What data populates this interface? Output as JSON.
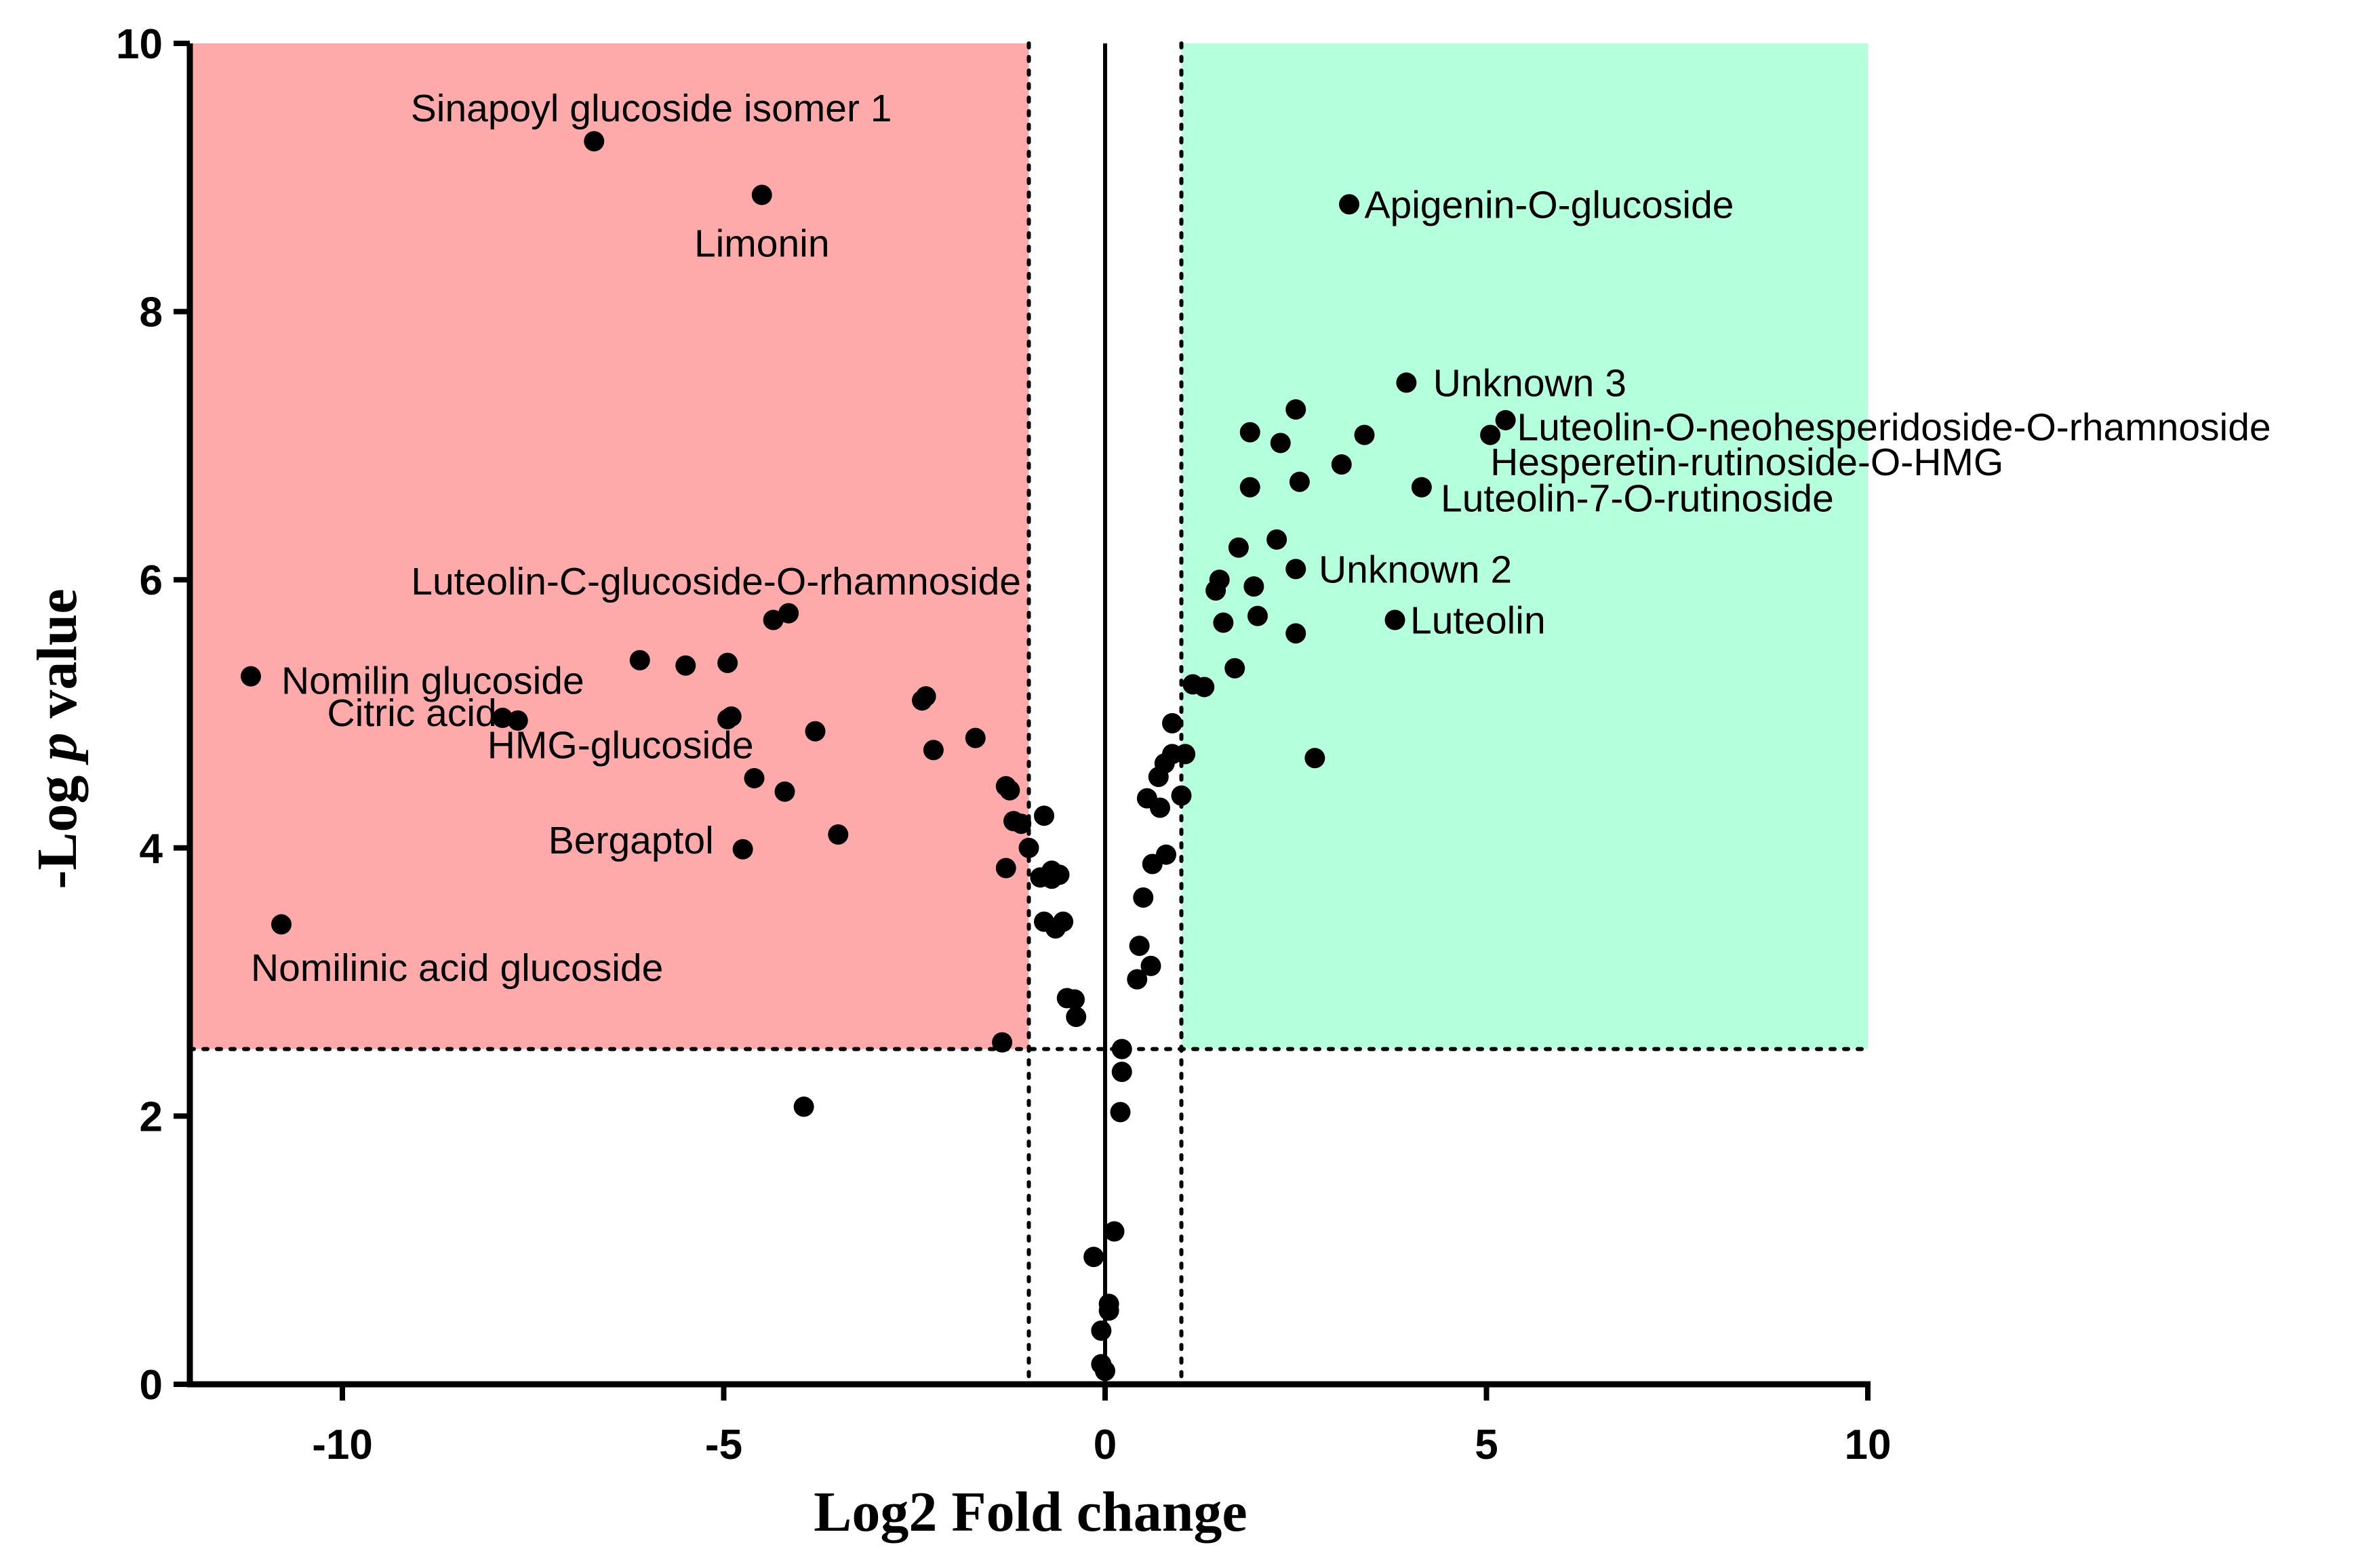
{
  "chart_data": {
    "type": "scatter",
    "title": "",
    "xlabel": "Log2 Fold change",
    "ylabel_prefix": "-Log ",
    "ylabel_italic": "p",
    "ylabel_suffix": " value",
    "xlim": [
      -12,
      10
    ],
    "ylim": [
      0,
      10
    ],
    "xticks": [
      -10,
      -5,
      0,
      5,
      10
    ],
    "yticks": [
      0,
      2,
      4,
      6,
      8,
      10
    ],
    "colors": {
      "down_region": "#ffaaaa",
      "up_region": "#b4ffdc",
      "points": "#000000",
      "axes": "#000000"
    },
    "regions": [
      {
        "name": "down-regulated",
        "x_range": [
          -12,
          -1
        ],
        "y_range": [
          2.5,
          10
        ],
        "color": "#ffaaaa"
      },
      {
        "name": "up-regulated",
        "x_range": [
          1,
          10
        ],
        "y_range": [
          2.5,
          10
        ],
        "color": "#b4ffdc"
      }
    ],
    "thresholds": {
      "fold_change_lines": [
        -1,
        1
      ],
      "p_value_line": 2.5
    },
    "points": [
      [
        -6.7,
        9.27
      ],
      [
        -4.5,
        8.87
      ],
      [
        -11.2,
        5.28
      ],
      [
        -10.8,
        3.43
      ],
      [
        -7.9,
        4.97
      ],
      [
        -7.7,
        4.95
      ],
      [
        -4.95,
        4.96
      ],
      [
        -4.9,
        4.98
      ],
      [
        -4.75,
        3.99
      ],
      [
        -4.6,
        4.52
      ],
      [
        -4.2,
        4.42
      ],
      [
        -4.35,
        5.7
      ],
      [
        -4.15,
        5.75
      ],
      [
        -6.1,
        5.4
      ],
      [
        -5.5,
        5.36
      ],
      [
        -4.95,
        5.38
      ],
      [
        -3.8,
        4.87
      ],
      [
        -3.5,
        4.1
      ],
      [
        -2.4,
        5.1
      ],
      [
        -2.35,
        5.13
      ],
      [
        -2.25,
        4.73
      ],
      [
        -1.7,
        4.82
      ],
      [
        -1.35,
        2.55
      ],
      [
        -1.3,
        4.46
      ],
      [
        -1.25,
        4.43
      ],
      [
        -1.2,
        4.2
      ],
      [
        -1.1,
        4.18
      ],
      [
        -1.3,
        3.85
      ],
      [
        -1.0,
        4.0
      ],
      [
        -0.85,
        3.78
      ],
      [
        -0.8,
        3.45
      ],
      [
        -0.8,
        4.24
      ],
      [
        -0.7,
        3.77
      ],
      [
        -0.7,
        3.83
      ],
      [
        -0.65,
        3.4
      ],
      [
        -0.55,
        3.45
      ],
      [
        -0.5,
        2.88
      ],
      [
        -0.4,
        2.87
      ],
      [
        -0.38,
        2.74
      ],
      [
        -0.6,
        3.8
      ],
      [
        -3.95,
        2.07
      ],
      [
        -0.15,
        0.95
      ],
      [
        -0.05,
        0.4
      ],
      [
        -0.05,
        0.15
      ],
      [
        0.0,
        0.1
      ],
      [
        0.05,
        0.55
      ],
      [
        0.05,
        0.6
      ],
      [
        0.12,
        1.14
      ],
      [
        0.2,
        2.03
      ],
      [
        0.22,
        2.33
      ],
      [
        0.22,
        2.5
      ],
      [
        0.42,
        3.02
      ],
      [
        0.45,
        3.27
      ],
      [
        0.5,
        3.63
      ],
      [
        0.55,
        4.37
      ],
      [
        0.6,
        3.12
      ],
      [
        0.62,
        3.88
      ],
      [
        0.7,
        4.53
      ],
      [
        0.72,
        4.3
      ],
      [
        0.78,
        4.63
      ],
      [
        0.8,
        3.95
      ],
      [
        0.88,
        4.7
      ],
      [
        0.88,
        4.93
      ],
      [
        1.0,
        4.39
      ],
      [
        1.05,
        4.7
      ],
      [
        1.15,
        5.22
      ],
      [
        1.3,
        5.2
      ],
      [
        1.45,
        5.92
      ],
      [
        1.5,
        6.0
      ],
      [
        1.55,
        5.68
      ],
      [
        1.7,
        5.34
      ],
      [
        1.75,
        6.24
      ],
      [
        1.9,
        6.69
      ],
      [
        1.9,
        7.1
      ],
      [
        1.95,
        5.95
      ],
      [
        2.0,
        5.73
      ],
      [
        2.25,
        6.3
      ],
      [
        2.3,
        7.02
      ],
      [
        2.5,
        7.27
      ],
      [
        2.5,
        6.08
      ],
      [
        2.5,
        5.6
      ],
      [
        2.55,
        6.73
      ],
      [
        2.75,
        4.67
      ],
      [
        3.1,
        6.86
      ],
      [
        3.2,
        8.8
      ],
      [
        3.4,
        7.08
      ],
      [
        3.8,
        5.7
      ],
      [
        3.95,
        7.47
      ],
      [
        4.15,
        6.69
      ],
      [
        5.05,
        7.08
      ],
      [
        5.25,
        7.19
      ]
    ],
    "annotations": [
      {
        "text": "Sinapoyl glucoside isomer 1",
        "x": -5.95,
        "y": 9.52,
        "anchor": "middle"
      },
      {
        "text": "Limonin",
        "x": -4.5,
        "y": 8.51,
        "anchor": "middle"
      },
      {
        "text": "Apigenin-O-glucoside",
        "x": 3.4,
        "y": 8.8,
        "anchor": "start"
      },
      {
        "text": "Unknown 3",
        "x": 4.3,
        "y": 7.47,
        "anchor": "start"
      },
      {
        "text": "Luteolin-O-neohesperidoside-O-rhamnoside",
        "x": 5.4,
        "y": 7.14,
        "anchor": "start"
      },
      {
        "text": "Hesperetin-rutinoside-O-HMG",
        "x": 5.05,
        "y": 6.88,
        "anchor": "start"
      },
      {
        "text": "Luteolin-7-O-rutinoside",
        "x": 4.4,
        "y": 6.61,
        "anchor": "start"
      },
      {
        "text": "Unknown 2",
        "x": 2.8,
        "y": 6.08,
        "anchor": "start"
      },
      {
        "text": "Luteolin",
        "x": 4.0,
        "y": 5.7,
        "anchor": "start"
      },
      {
        "text": "Luteolin-C-glucoside-O-rhamnoside",
        "x": -9.1,
        "y": 5.99,
        "anchor": "start"
      },
      {
        "text": "Nomilin glucoside",
        "x": -10.8,
        "y": 5.25,
        "anchor": "start"
      },
      {
        "text": "Citric acid",
        "x": -10.2,
        "y": 5.01,
        "anchor": "start"
      },
      {
        "text": "HMG-glucoside",
        "x": -8.1,
        "y": 4.77,
        "anchor": "start"
      },
      {
        "text": "Bergaptol",
        "x": -7.3,
        "y": 4.06,
        "anchor": "start"
      },
      {
        "text": "Nomilinic acid glucoside",
        "x": -11.2,
        "y": 3.11,
        "anchor": "start"
      }
    ]
  }
}
